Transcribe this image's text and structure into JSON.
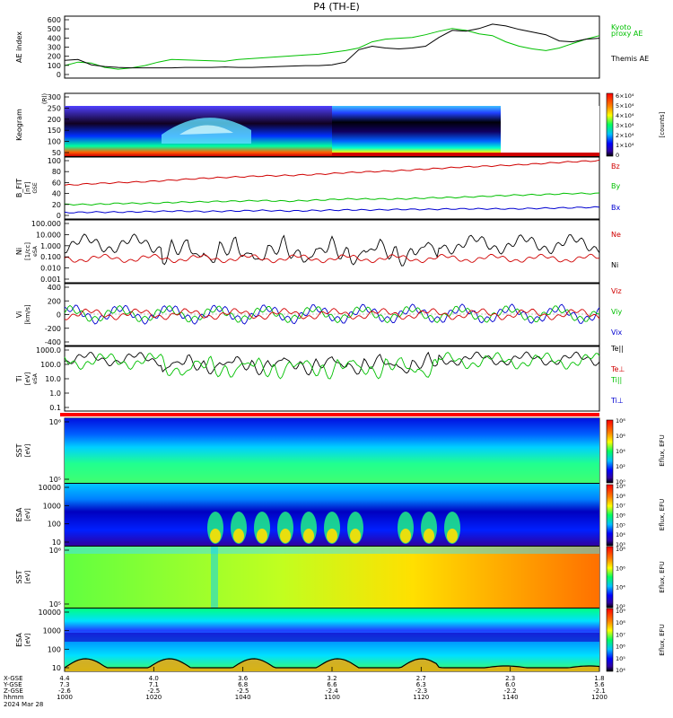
{
  "title": "P4 (TH-E)",
  "colors": {
    "kyoto": "#00c000",
    "themis": "#000000",
    "bz": "#d00000",
    "by": "#00c000",
    "bx": "#0000d0"
  },
  "chart_data": [
    {
      "type": "line",
      "panel": "ae",
      "ylabel": "AE index",
      "yticks": [
        "600",
        "500",
        "400",
        "300",
        "200",
        "100",
        "0"
      ],
      "ylim": [
        0,
        600
      ],
      "x": [
        1000,
        1005,
        1010,
        1015,
        1020,
        1025,
        1030,
        1035,
        1040,
        1045,
        1050,
        1055,
        1060,
        1065,
        1070,
        1075,
        1080,
        1085,
        1090,
        1095,
        1100,
        1105,
        1110,
        1115,
        1120,
        1125,
        1130,
        1135,
        1140,
        1145,
        1150,
        1155,
        1160,
        1165,
        1170,
        1175,
        1180,
        1185,
        1190,
        1195,
        1200
      ],
      "series": [
        {
          "name": "Kyoto proxy AE",
          "values": [
            80,
            120,
            110,
            60,
            40,
            55,
            80,
            120,
            150,
            145,
            140,
            135,
            130,
            150,
            160,
            170,
            180,
            190,
            200,
            210,
            230,
            250,
            280,
            350,
            380,
            390,
            400,
            430,
            470,
            500,
            480,
            440,
            420,
            350,
            300,
            270,
            250,
            280,
            330,
            380,
            420
          ]
        },
        {
          "name": "Themis AE",
          "values": [
            140,
            150,
            90,
            70,
            60,
            55,
            55,
            55,
            55,
            60,
            60,
            60,
            65,
            60,
            60,
            65,
            70,
            75,
            80,
            80,
            90,
            120,
            260,
            300,
            280,
            270,
            280,
            300,
            400,
            480,
            470,
            500,
            550,
            530,
            490,
            460,
            430,
            360,
            350,
            380,
            390
          ]
        }
      ]
    },
    {
      "type": "heatmap",
      "panel": "keogram",
      "ylabel": "Keogram",
      "unit_label": "(Rl)",
      "yticks": [
        "300",
        "250",
        "200",
        "150",
        "100",
        "50"
      ],
      "colorbar_ticks": [
        "6×10⁴",
        "5×10⁴",
        "4×10⁴",
        "3×10⁴",
        "2×10⁴",
        "1×10⁴",
        "0"
      ],
      "colorbar_label": "[counts]"
    },
    {
      "type": "line",
      "panel": "bfield",
      "ylabel": "B_FIT",
      "ylabel2": "[nT]",
      "ylabel3": "GSE",
      "yticks": [
        "100",
        "80",
        "60",
        "40",
        "20",
        "0"
      ],
      "ylim": [
        0,
        100
      ],
      "series": [
        {
          "name": "Bz",
          "values": [
            55,
            58,
            60,
            62,
            65,
            68,
            70,
            72,
            73,
            75,
            78,
            80,
            82,
            85,
            88,
            90,
            92,
            95,
            98,
            100
          ]
        },
        {
          "name": "By",
          "values": [
            20,
            20,
            22,
            22,
            24,
            25,
            26,
            27,
            26,
            28,
            30,
            30,
            30,
            32,
            33,
            35,
            37,
            38,
            40,
            40
          ]
        },
        {
          "name": "Bx",
          "values": [
            5,
            6,
            6,
            7,
            8,
            7,
            8,
            9,
            8,
            9,
            10,
            10,
            11,
            11,
            12,
            12,
            12,
            13,
            14,
            15
          ]
        }
      ]
    },
    {
      "type": "line",
      "panel": "density",
      "ylabel": "Ni",
      "ylabel2": "[1/cc]",
      "ylabel3": "eSA",
      "yticks": [
        "100.000",
        "10.000",
        "1.000",
        "0.100",
        "0.010",
        "0.001"
      ],
      "series": [
        {
          "name": "Ne"
        },
        {
          "name": "Ni"
        }
      ]
    },
    {
      "type": "line",
      "panel": "velocity",
      "ylabel": "Vi",
      "ylabel2": "[km/s]",
      "yticks": [
        "400",
        "200",
        "0",
        "-200",
        "-400"
      ],
      "series": [
        {
          "name": "Viz"
        },
        {
          "name": "Viy"
        },
        {
          "name": "Vix"
        }
      ]
    },
    {
      "type": "line",
      "panel": "temperature",
      "ylabel": "Ti",
      "ylabel2": "[eV]",
      "ylabel3": "eSA",
      "yticks": [
        "1000.0",
        "100.0",
        "10.0",
        "1.0",
        "0.1"
      ],
      "series": [
        {
          "name": "Te||"
        },
        {
          "name": "Te⊥"
        },
        {
          "name": "Ti||"
        },
        {
          "name": "Ti⊥"
        }
      ]
    },
    {
      "type": "heatmap",
      "panel": "sst_e",
      "ylabel": "SST",
      "ylabel2": "[eV]",
      "yticks": [
        "10⁶",
        "10⁵"
      ],
      "colorbar_ticks": [
        "10⁸",
        "10⁶",
        "10⁴",
        "10²",
        "10⁰"
      ],
      "colorbar_label": "Eflux, EFU"
    },
    {
      "type": "heatmap",
      "panel": "esa_e",
      "ylabel": "ESA",
      "ylabel2": "[eV]",
      "yticks": [
        "10000",
        "1000",
        "100",
        "10"
      ],
      "colorbar_ticks": [
        "10⁹",
        "10⁸",
        "10⁷",
        "10⁶",
        "10⁵",
        "10⁴",
        "10³"
      ],
      "colorbar_label": "Eflux, EFU"
    },
    {
      "type": "heatmap",
      "panel": "sst_i",
      "ylabel": "SST",
      "ylabel2": "[eV]",
      "yticks": [
        "10⁶",
        "10⁵"
      ],
      "colorbar_ticks": [
        "10⁸",
        "10⁶",
        "10⁴",
        "10²"
      ],
      "colorbar_label": "Eflux, EFU"
    },
    {
      "type": "heatmap",
      "panel": "esa_i",
      "ylabel": "ESA",
      "ylabel2": "[eV]",
      "yticks": [
        "10000",
        "1000",
        "100",
        "10"
      ],
      "colorbar_ticks": [
        "10⁹",
        "10⁸",
        "10⁷",
        "10⁶",
        "10⁵",
        "10⁴"
      ],
      "colorbar_label": "Eflux, EFU"
    }
  ],
  "xaxis": {
    "row_labels": [
      "X-GSE",
      "Y-GSE",
      "Z-GSE",
      "hhmm",
      "2024 Mar 28"
    ],
    "ticks": [
      {
        "x": "4.4",
        "y": "7.3",
        "z": "-2.6",
        "time": "1000"
      },
      {
        "x": "4.0",
        "y": "7.1",
        "z": "-2.5",
        "time": "1020"
      },
      {
        "x": "3.6",
        "y": "6.8",
        "z": "-2.5",
        "time": "1040"
      },
      {
        "x": "3.2",
        "y": "6.6",
        "z": "-2.4",
        "time": "1100"
      },
      {
        "x": "2.7",
        "y": "6.3",
        "z": "-2.3",
        "time": "1120"
      },
      {
        "x": "2.3",
        "y": "6.0",
        "z": "-2.2",
        "time": "1140"
      },
      {
        "x": "1.8",
        "y": "5.6",
        "z": "-2.1",
        "time": "1200"
      }
    ]
  }
}
